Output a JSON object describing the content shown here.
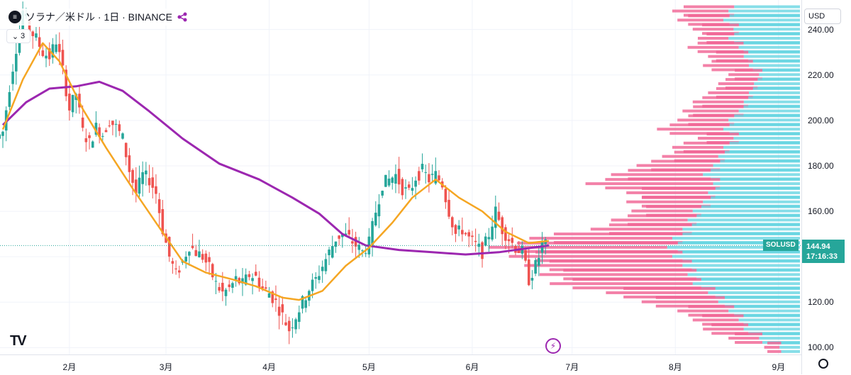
{
  "header": {
    "title": "ソラナ／米ドル · 1日 · BINANCE",
    "icon": "solana-icon",
    "collapse_count": "3"
  },
  "currency": "USD",
  "price_tag": {
    "symbol": "SOLUSD",
    "price": "144.94",
    "countdown": "17:16:33",
    "color": "#26a69a"
  },
  "logo": "TV",
  "colors": {
    "up": "#26a69a",
    "down": "#ef5350",
    "ma_short": "#f5a623",
    "ma_long": "#9c27b0",
    "vp_up": "#5fd3e0",
    "vp_down": "#f06292"
  },
  "chart_data": {
    "type": "candlestick",
    "y_ticks": [
      "240.00",
      "220.00",
      "200.00",
      "180.00",
      "160.00",
      "140.00",
      "120.00",
      "100.00"
    ],
    "ylim": [
      97,
      253
    ],
    "x_ticks": [
      "2月",
      "3月",
      "4月",
      "5月",
      "6月",
      "7月",
      "8月",
      "9月"
    ],
    "x_tick_days": [
      31,
      60,
      91,
      121,
      152,
      182,
      213,
      244
    ],
    "x_start_day": 11,
    "x_end_day": 250,
    "current_price": 144.94,
    "closes": [
      {
        "day": 11,
        "close": 195
      },
      {
        "day": 13,
        "close": 215
      },
      {
        "day": 15,
        "close": 232
      },
      {
        "day": 17,
        "close": 248
      },
      {
        "day": 19,
        "close": 240
      },
      {
        "day": 21,
        "close": 236
      },
      {
        "day": 23,
        "close": 230
      },
      {
        "day": 25,
        "close": 228
      },
      {
        "day": 27,
        "close": 235
      },
      {
        "day": 29,
        "close": 222
      },
      {
        "day": 31,
        "close": 205
      },
      {
        "day": 33,
        "close": 212
      },
      {
        "day": 35,
        "close": 195
      },
      {
        "day": 37,
        "close": 190
      },
      {
        "day": 39,
        "close": 197
      },
      {
        "day": 41,
        "close": 194
      },
      {
        "day": 43,
        "close": 200
      },
      {
        "day": 45,
        "close": 197
      },
      {
        "day": 47,
        "close": 192
      },
      {
        "day": 49,
        "close": 178
      },
      {
        "day": 51,
        "close": 168
      },
      {
        "day": 53,
        "close": 176
      },
      {
        "day": 55,
        "close": 174
      },
      {
        "day": 57,
        "close": 168
      },
      {
        "day": 59,
        "close": 152
      },
      {
        "day": 61,
        "close": 140
      },
      {
        "day": 63,
        "close": 132
      },
      {
        "day": 65,
        "close": 138
      },
      {
        "day": 67,
        "close": 145
      },
      {
        "day": 69,
        "close": 142
      },
      {
        "day": 71,
        "close": 140
      },
      {
        "day": 73,
        "close": 135
      },
      {
        "day": 75,
        "close": 128
      },
      {
        "day": 77,
        "close": 124
      },
      {
        "day": 79,
        "close": 126
      },
      {
        "day": 81,
        "close": 130
      },
      {
        "day": 83,
        "close": 128
      },
      {
        "day": 85,
        "close": 132
      },
      {
        "day": 87,
        "close": 131
      },
      {
        "day": 89,
        "close": 126
      },
      {
        "day": 91,
        "close": 124
      },
      {
        "day": 93,
        "close": 120
      },
      {
        "day": 95,
        "close": 114
      },
      {
        "day": 97,
        "close": 108
      },
      {
        "day": 99,
        "close": 114
      },
      {
        "day": 101,
        "close": 120
      },
      {
        "day": 103,
        "close": 126
      },
      {
        "day": 105,
        "close": 130
      },
      {
        "day": 107,
        "close": 136
      },
      {
        "day": 109,
        "close": 142
      },
      {
        "day": 111,
        "close": 148
      },
      {
        "day": 113,
        "close": 150
      },
      {
        "day": 115,
        "close": 148
      },
      {
        "day": 117,
        "close": 145
      },
      {
        "day": 119,
        "close": 142
      },
      {
        "day": 121,
        "close": 146
      },
      {
        "day": 123,
        "close": 160
      },
      {
        "day": 125,
        "close": 172
      },
      {
        "day": 127,
        "close": 174
      },
      {
        "day": 129,
        "close": 176
      },
      {
        "day": 131,
        "close": 170
      },
      {
        "day": 133,
        "close": 168
      },
      {
        "day": 135,
        "close": 175
      },
      {
        "day": 137,
        "close": 178
      },
      {
        "day": 139,
        "close": 174
      },
      {
        "day": 141,
        "close": 176
      },
      {
        "day": 143,
        "close": 172
      },
      {
        "day": 145,
        "close": 160
      },
      {
        "day": 147,
        "close": 150
      },
      {
        "day": 149,
        "close": 152
      },
      {
        "day": 151,
        "close": 148
      },
      {
        "day": 153,
        "close": 145
      },
      {
        "day": 155,
        "close": 142
      },
      {
        "day": 157,
        "close": 150
      },
      {
        "day": 159,
        "close": 160
      },
      {
        "day": 161,
        "close": 152
      },
      {
        "day": 163,
        "close": 148
      },
      {
        "day": 165,
        "close": 144
      },
      {
        "day": 167,
        "close": 142
      },
      {
        "day": 169,
        "close": 130
      },
      {
        "day": 171,
        "close": 136
      },
      {
        "day": 173,
        "close": 144
      },
      {
        "day": 174,
        "close": 145
      }
    ],
    "ma_short": [
      {
        "day": 11,
        "value": 196
      },
      {
        "day": 17,
        "value": 218
      },
      {
        "day": 23,
        "value": 234
      },
      {
        "day": 28,
        "value": 226
      },
      {
        "day": 35,
        "value": 205
      },
      {
        "day": 42,
        "value": 188
      },
      {
        "day": 50,
        "value": 170
      },
      {
        "day": 57,
        "value": 155
      },
      {
        "day": 65,
        "value": 138
      },
      {
        "day": 72,
        "value": 133
      },
      {
        "day": 80,
        "value": 130
      },
      {
        "day": 87,
        "value": 127
      },
      {
        "day": 95,
        "value": 122
      },
      {
        "day": 100,
        "value": 121
      },
      {
        "day": 107,
        "value": 125
      },
      {
        "day": 114,
        "value": 136
      },
      {
        "day": 121,
        "value": 144
      },
      {
        "day": 128,
        "value": 155
      },
      {
        "day": 134,
        "value": 166
      },
      {
        "day": 141,
        "value": 174
      },
      {
        "day": 148,
        "value": 166
      },
      {
        "day": 155,
        "value": 160
      },
      {
        "day": 162,
        "value": 151
      },
      {
        "day": 169,
        "value": 146
      },
      {
        "day": 175,
        "value": 147
      }
    ],
    "ma_long": [
      {
        "day": 11,
        "value": 198
      },
      {
        "day": 18,
        "value": 208
      },
      {
        "day": 25,
        "value": 214
      },
      {
        "day": 33,
        "value": 215
      },
      {
        "day": 40,
        "value": 217
      },
      {
        "day": 47,
        "value": 213
      },
      {
        "day": 55,
        "value": 204
      },
      {
        "day": 65,
        "value": 192
      },
      {
        "day": 76,
        "value": 181
      },
      {
        "day": 88,
        "value": 174
      },
      {
        "day": 98,
        "value": 166
      },
      {
        "day": 106,
        "value": 159
      },
      {
        "day": 113,
        "value": 150
      },
      {
        "day": 120,
        "value": 145
      },
      {
        "day": 130,
        "value": 143
      },
      {
        "day": 140,
        "value": 142
      },
      {
        "day": 150,
        "value": 141
      },
      {
        "day": 160,
        "value": 142
      },
      {
        "day": 170,
        "value": 144
      },
      {
        "day": 175,
        "value": 145
      }
    ],
    "volume_profile_note": "visible range volume profile on right side",
    "volume_profile": [
      {
        "price": 248,
        "up": 0.28,
        "down": 0.22
      },
      {
        "price": 244,
        "up": 0.3,
        "down": 0.18
      },
      {
        "price": 240,
        "up": 0.26,
        "down": 0.16
      },
      {
        "price": 236,
        "up": 0.28,
        "down": 0.12
      },
      {
        "price": 232,
        "up": 0.24,
        "down": 0.2
      },
      {
        "price": 228,
        "up": 0.22,
        "down": 0.14
      },
      {
        "price": 224,
        "up": 0.2,
        "down": 0.18
      },
      {
        "price": 220,
        "up": 0.16,
        "down": 0.12
      },
      {
        "price": 216,
        "up": 0.18,
        "down": 0.14
      },
      {
        "price": 212,
        "up": 0.2,
        "down": 0.16
      },
      {
        "price": 208,
        "up": 0.22,
        "down": 0.2
      },
      {
        "price": 204,
        "up": 0.24,
        "down": 0.22
      },
      {
        "price": 200,
        "up": 0.28,
        "down": 0.2
      },
      {
        "price": 196,
        "up": 0.3,
        "down": 0.26
      },
      {
        "price": 192,
        "up": 0.26,
        "down": 0.14
      },
      {
        "price": 188,
        "up": 0.3,
        "down": 0.2
      },
      {
        "price": 184,
        "up": 0.32,
        "down": 0.22
      },
      {
        "price": 180,
        "up": 0.34,
        "down": 0.3
      },
      {
        "price": 176,
        "up": 0.38,
        "down": 0.36
      },
      {
        "price": 172,
        "up": 0.34,
        "down": 0.5
      },
      {
        "price": 168,
        "up": 0.36,
        "down": 0.32
      },
      {
        "price": 164,
        "up": 0.38,
        "down": 0.3
      },
      {
        "price": 160,
        "up": 0.42,
        "down": 0.24
      },
      {
        "price": 156,
        "up": 0.44,
        "down": 0.3
      },
      {
        "price": 152,
        "up": 0.46,
        "down": 0.36
      },
      {
        "price": 148,
        "up": 0.5,
        "down": 0.56
      },
      {
        "price": 144,
        "up": 0.52,
        "down": 0.7
      },
      {
        "price": 140,
        "up": 0.5,
        "down": 0.64
      },
      {
        "price": 136,
        "up": 0.46,
        "down": 0.62
      },
      {
        "price": 132,
        "up": 0.44,
        "down": 0.58
      },
      {
        "price": 128,
        "up": 0.42,
        "down": 0.56
      },
      {
        "price": 124,
        "up": 0.36,
        "down": 0.4
      },
      {
        "price": 120,
        "up": 0.32,
        "down": 0.3
      },
      {
        "price": 116,
        "up": 0.28,
        "down": 0.2
      },
      {
        "price": 112,
        "up": 0.24,
        "down": 0.18
      },
      {
        "price": 108,
        "up": 0.22,
        "down": 0.16
      },
      {
        "price": 104,
        "up": 0.16,
        "down": 0.12
      },
      {
        "price": 100,
        "up": 0.08,
        "down": 0.06
      }
    ]
  }
}
